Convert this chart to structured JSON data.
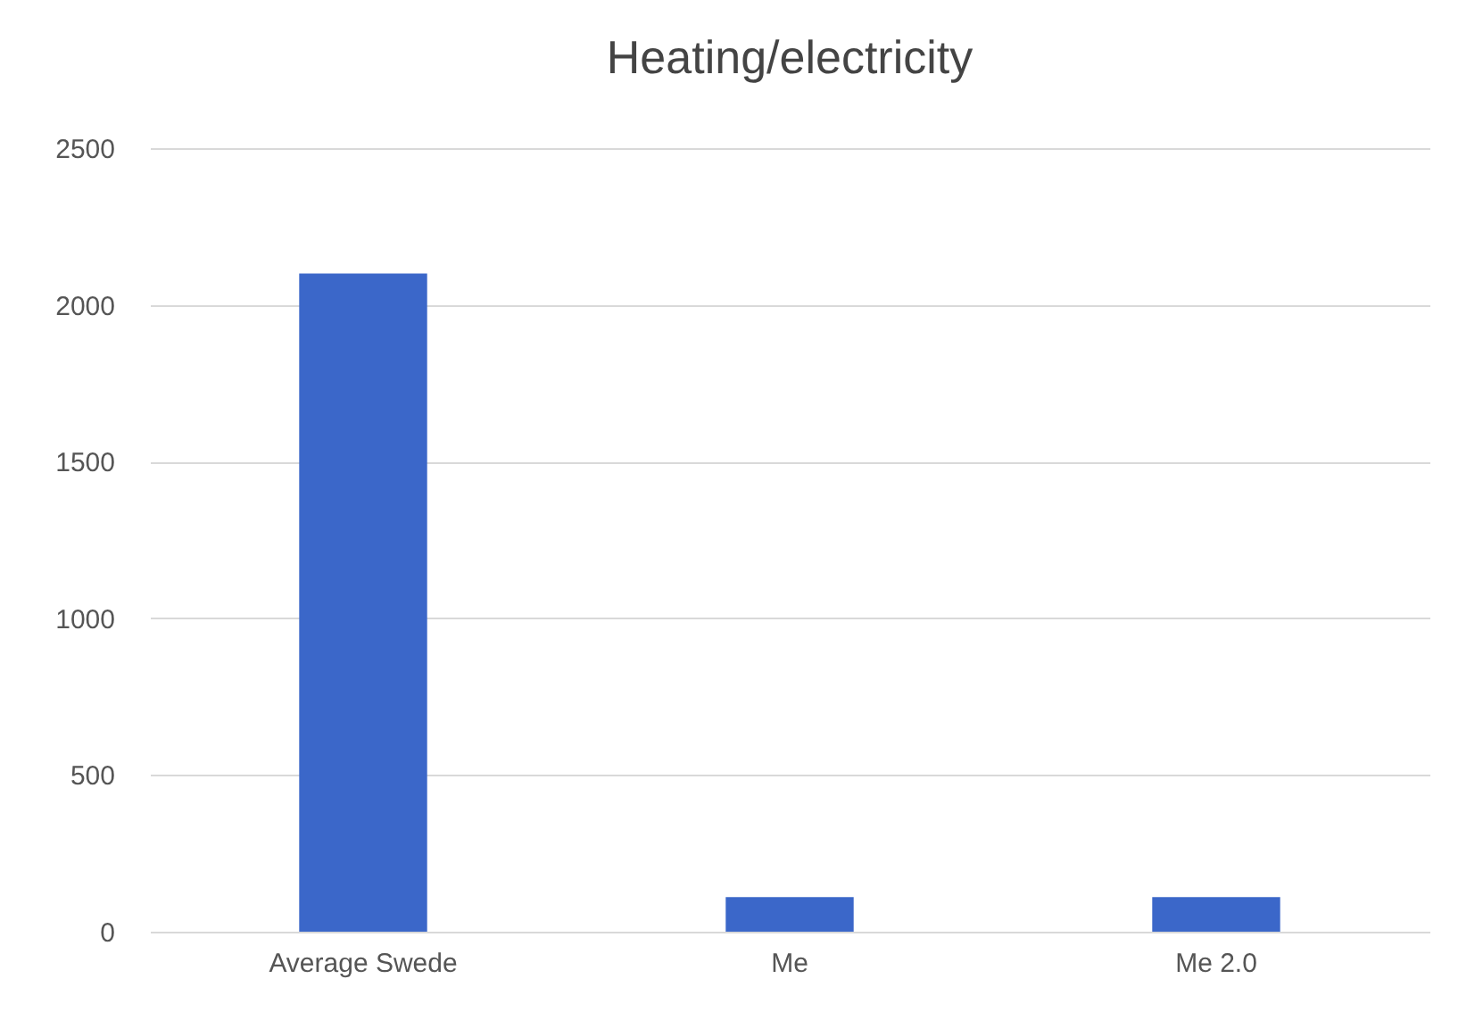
{
  "chart_data": {
    "type": "bar",
    "title": "Heating/electricity",
    "categories": [
      "Average Swede",
      "Me",
      "Me 2.0"
    ],
    "values": [
      2100,
      110,
      110
    ],
    "color": "#3b67c9",
    "ylim": [
      0,
      2500
    ],
    "yticks": [
      0,
      500,
      1000,
      1500,
      2000,
      2500
    ],
    "grid": "y"
  }
}
